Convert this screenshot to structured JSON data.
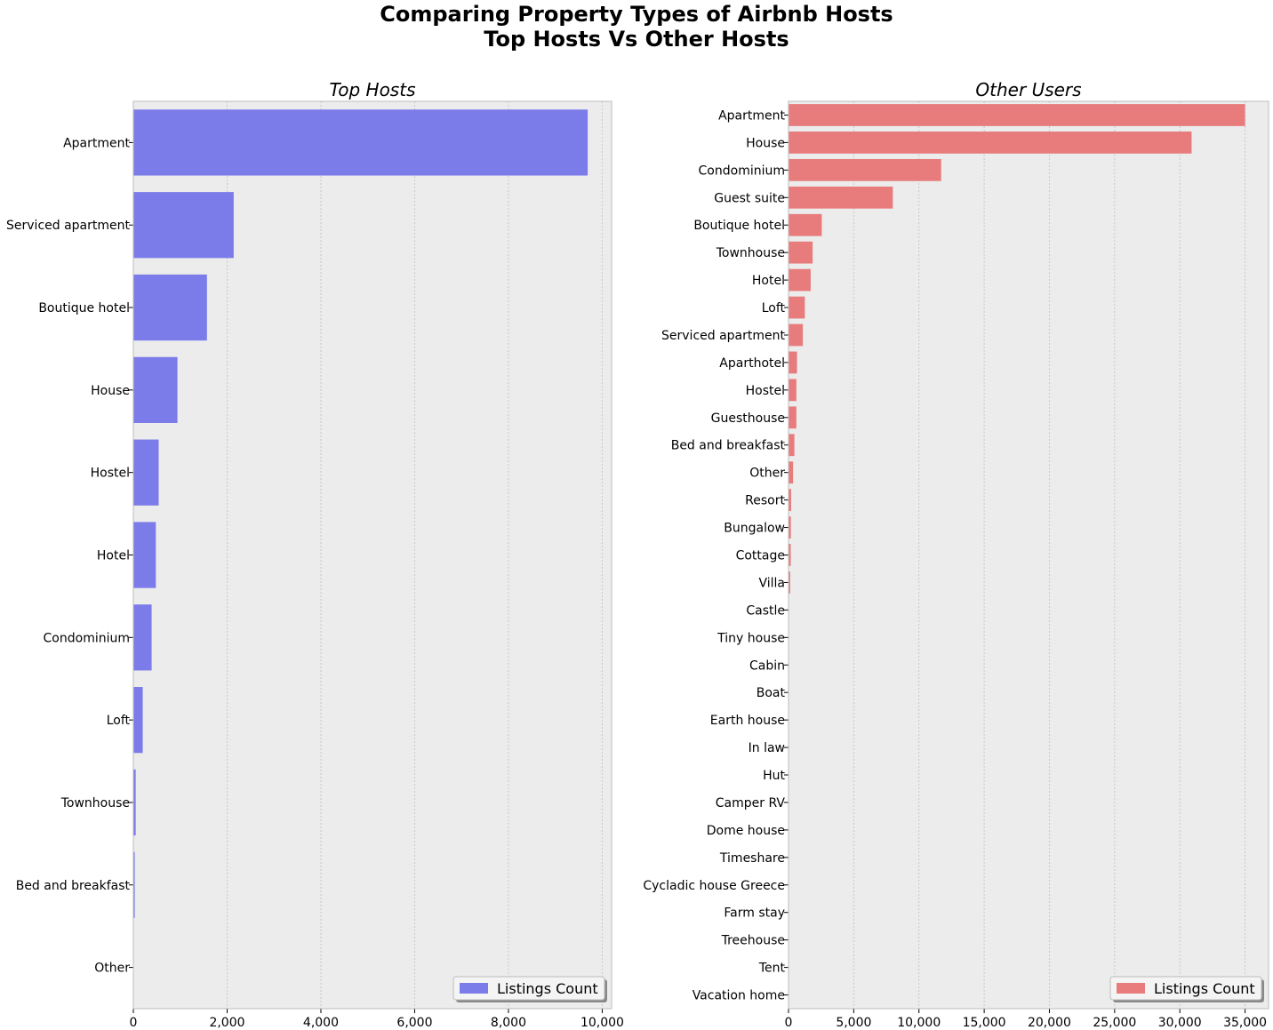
{
  "figure": {
    "title_line1": "Comparing Property Types of Airbnb Hosts",
    "title_line2": "Top Hosts Vs Other Hosts"
  },
  "chart_data": [
    {
      "type": "bar",
      "orientation": "horizontal",
      "title": "Top Hosts",
      "color": "#7b7bea",
      "xlim": [
        0,
        10200
      ],
      "xticks": [
        0,
        2000,
        4000,
        6000,
        8000,
        10000
      ],
      "xtick_labels": [
        "0",
        "2,000",
        "4,000",
        "6,000",
        "8,000",
        "10,000"
      ],
      "grid": "x",
      "legend": {
        "label": "Listings Count",
        "position": "lower-right"
      },
      "categories": [
        "Apartment",
        "Serviced apartment",
        "Boutique hotel",
        "House",
        "Hostel",
        "Hotel",
        "Condominium",
        "Loft",
        "Townhouse",
        "Bed and breakfast",
        "Other"
      ],
      "values": [
        9690,
        2140,
        1570,
        940,
        540,
        480,
        390,
        200,
        50,
        30,
        5
      ]
    },
    {
      "type": "bar",
      "orientation": "horizontal",
      "title": "Other Users",
      "color": "#e87b7b",
      "xlim": [
        0,
        36800
      ],
      "xticks": [
        0,
        5000,
        10000,
        15000,
        20000,
        25000,
        30000,
        35000
      ],
      "xtick_labels": [
        "0",
        "5,000",
        "10,000",
        "15,000",
        "20,000",
        "25,000",
        "30,000",
        "35,000"
      ],
      "grid": "x",
      "legend": {
        "label": "Listings Count",
        "position": "lower-right"
      },
      "categories": [
        "Apartment",
        "House",
        "Condominium",
        "Guest suite",
        "Boutique hotel",
        "Townhouse",
        "Hotel",
        "Loft",
        "Serviced apartment",
        "Aparthotel",
        "Hostel",
        "Guesthouse",
        "Bed and breakfast",
        "Other",
        "Resort",
        "Bungalow",
        "Cottage",
        "Villa",
        "Castle",
        "Tiny house",
        "Cabin",
        "Boat",
        "Earth house",
        "In law",
        "Hut",
        "Camper RV",
        "Dome house",
        "Timeshare",
        "Cycladic house  Greece ",
        "Farm stay",
        "Treehouse",
        "Tent",
        "Vacation home"
      ],
      "values": [
        35000,
        30900,
        11700,
        8000,
        2550,
        1850,
        1700,
        1250,
        1100,
        650,
        600,
        600,
        450,
        350,
        200,
        180,
        170,
        130,
        30,
        25,
        20,
        15,
        12,
        10,
        8,
        8,
        6,
        5,
        5,
        4,
        3,
        3,
        2
      ]
    }
  ]
}
